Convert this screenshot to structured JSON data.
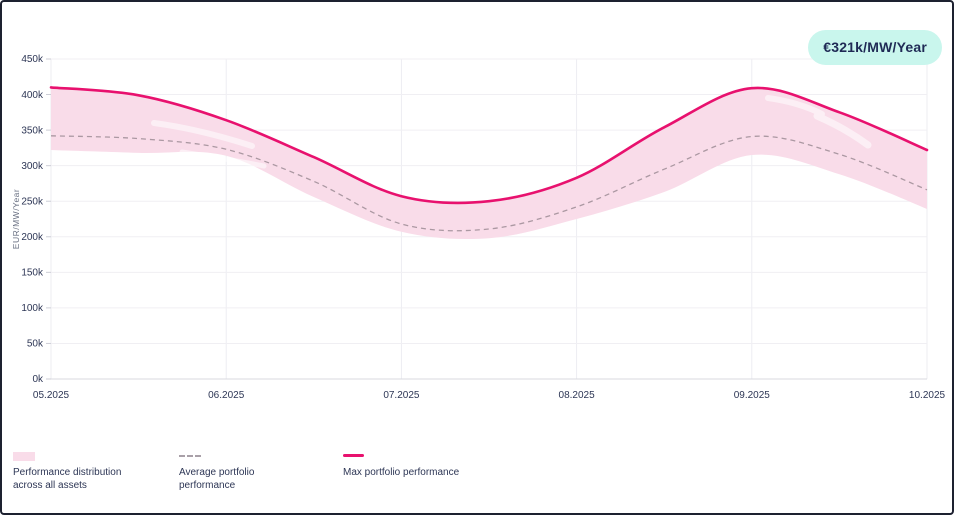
{
  "badge": {
    "label": "€321k/MW/Year",
    "bg": "#c9f6ed",
    "text_color": "#1f2a55"
  },
  "chart_data": {
    "type": "area",
    "title": "",
    "ylabel": "EUR/MW/Year",
    "xlabel": "",
    "grid": "on",
    "x_tick_labels": [
      "05.2025",
      "06.2025",
      "07.2025",
      "08.2025",
      "09.2025",
      "10.2025"
    ],
    "y_tick_labels": [
      "450k",
      "400k",
      "350k",
      "300k",
      "250k",
      "200k",
      "150k",
      "100k",
      "50k",
      "0k"
    ],
    "ylim_k_eur": [
      0,
      450
    ],
    "x_range_months": [
      5.0,
      10.0
    ],
    "x_samples_months": [
      5.0,
      5.5,
      6.0,
      6.5,
      7.0,
      7.5,
      8.0,
      8.5,
      9.0,
      9.5,
      10.0
    ],
    "series": [
      {
        "name": "Max portfolio performance",
        "style": "solid-line",
        "color": "#e8116e",
        "values_k_eur": [
          410,
          399,
          364,
          312,
          257,
          250,
          283,
          354,
          409,
          375,
          322
        ]
      },
      {
        "name": "Average portfolio performance",
        "style": "dashed-line",
        "color": "#ab98a2",
        "values_k_eur": [
          342,
          338,
          323,
          278,
          218,
          211,
          242,
          295,
          341,
          316,
          266
        ]
      },
      {
        "name": "Performance distribution lower bound",
        "style": "band-lower-edge",
        "color": "#f9dce9",
        "values_k_eur": [
          322,
          318,
          314,
          256,
          207,
          198,
          225,
          263,
          315,
          288,
          239
        ]
      }
    ],
    "band": {
      "label": "Performance distribution across all assets",
      "upper_edge": "Max portfolio performance",
      "lower_edge": "Performance distribution lower bound",
      "fill": "#f9dce9"
    },
    "colors": {
      "grid_line": "#f0eff3",
      "axis_line": "#d8d9df",
      "tick_mark": "#cdced6",
      "tick_text": "#2d3655",
      "axis_title_text": "#6a7183"
    }
  },
  "legend": {
    "items": [
      {
        "swatch": "band",
        "lines": [
          "Performance distribution",
          "across all assets"
        ]
      },
      {
        "swatch": "dashed-line",
        "lines": [
          "Average portfolio",
          "performance"
        ]
      },
      {
        "swatch": "solid-line",
        "lines": [
          "Max portfolio performance"
        ]
      }
    ]
  }
}
